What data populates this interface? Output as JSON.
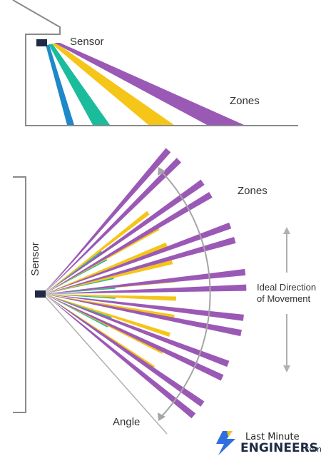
{
  "side_view": {
    "sensor_label": "Sensor",
    "zones_label": "Zones"
  },
  "top_view": {
    "zones_label": "Zones",
    "sensor_label": "Sensor",
    "angle_label": "Angle",
    "direction_label_line1": "Ideal Direction",
    "direction_label_line2": "of Movement"
  },
  "logo": {
    "line1": "Last Minute",
    "line2": "ENGINEERS",
    "suffix": ".com"
  },
  "colors": {
    "purple": "#9b59b6",
    "yellow": "#f5c518",
    "teal": "#1abc9c",
    "blue": "#1e88c8",
    "outline": "#777777",
    "sensor": "#1f2a44"
  }
}
